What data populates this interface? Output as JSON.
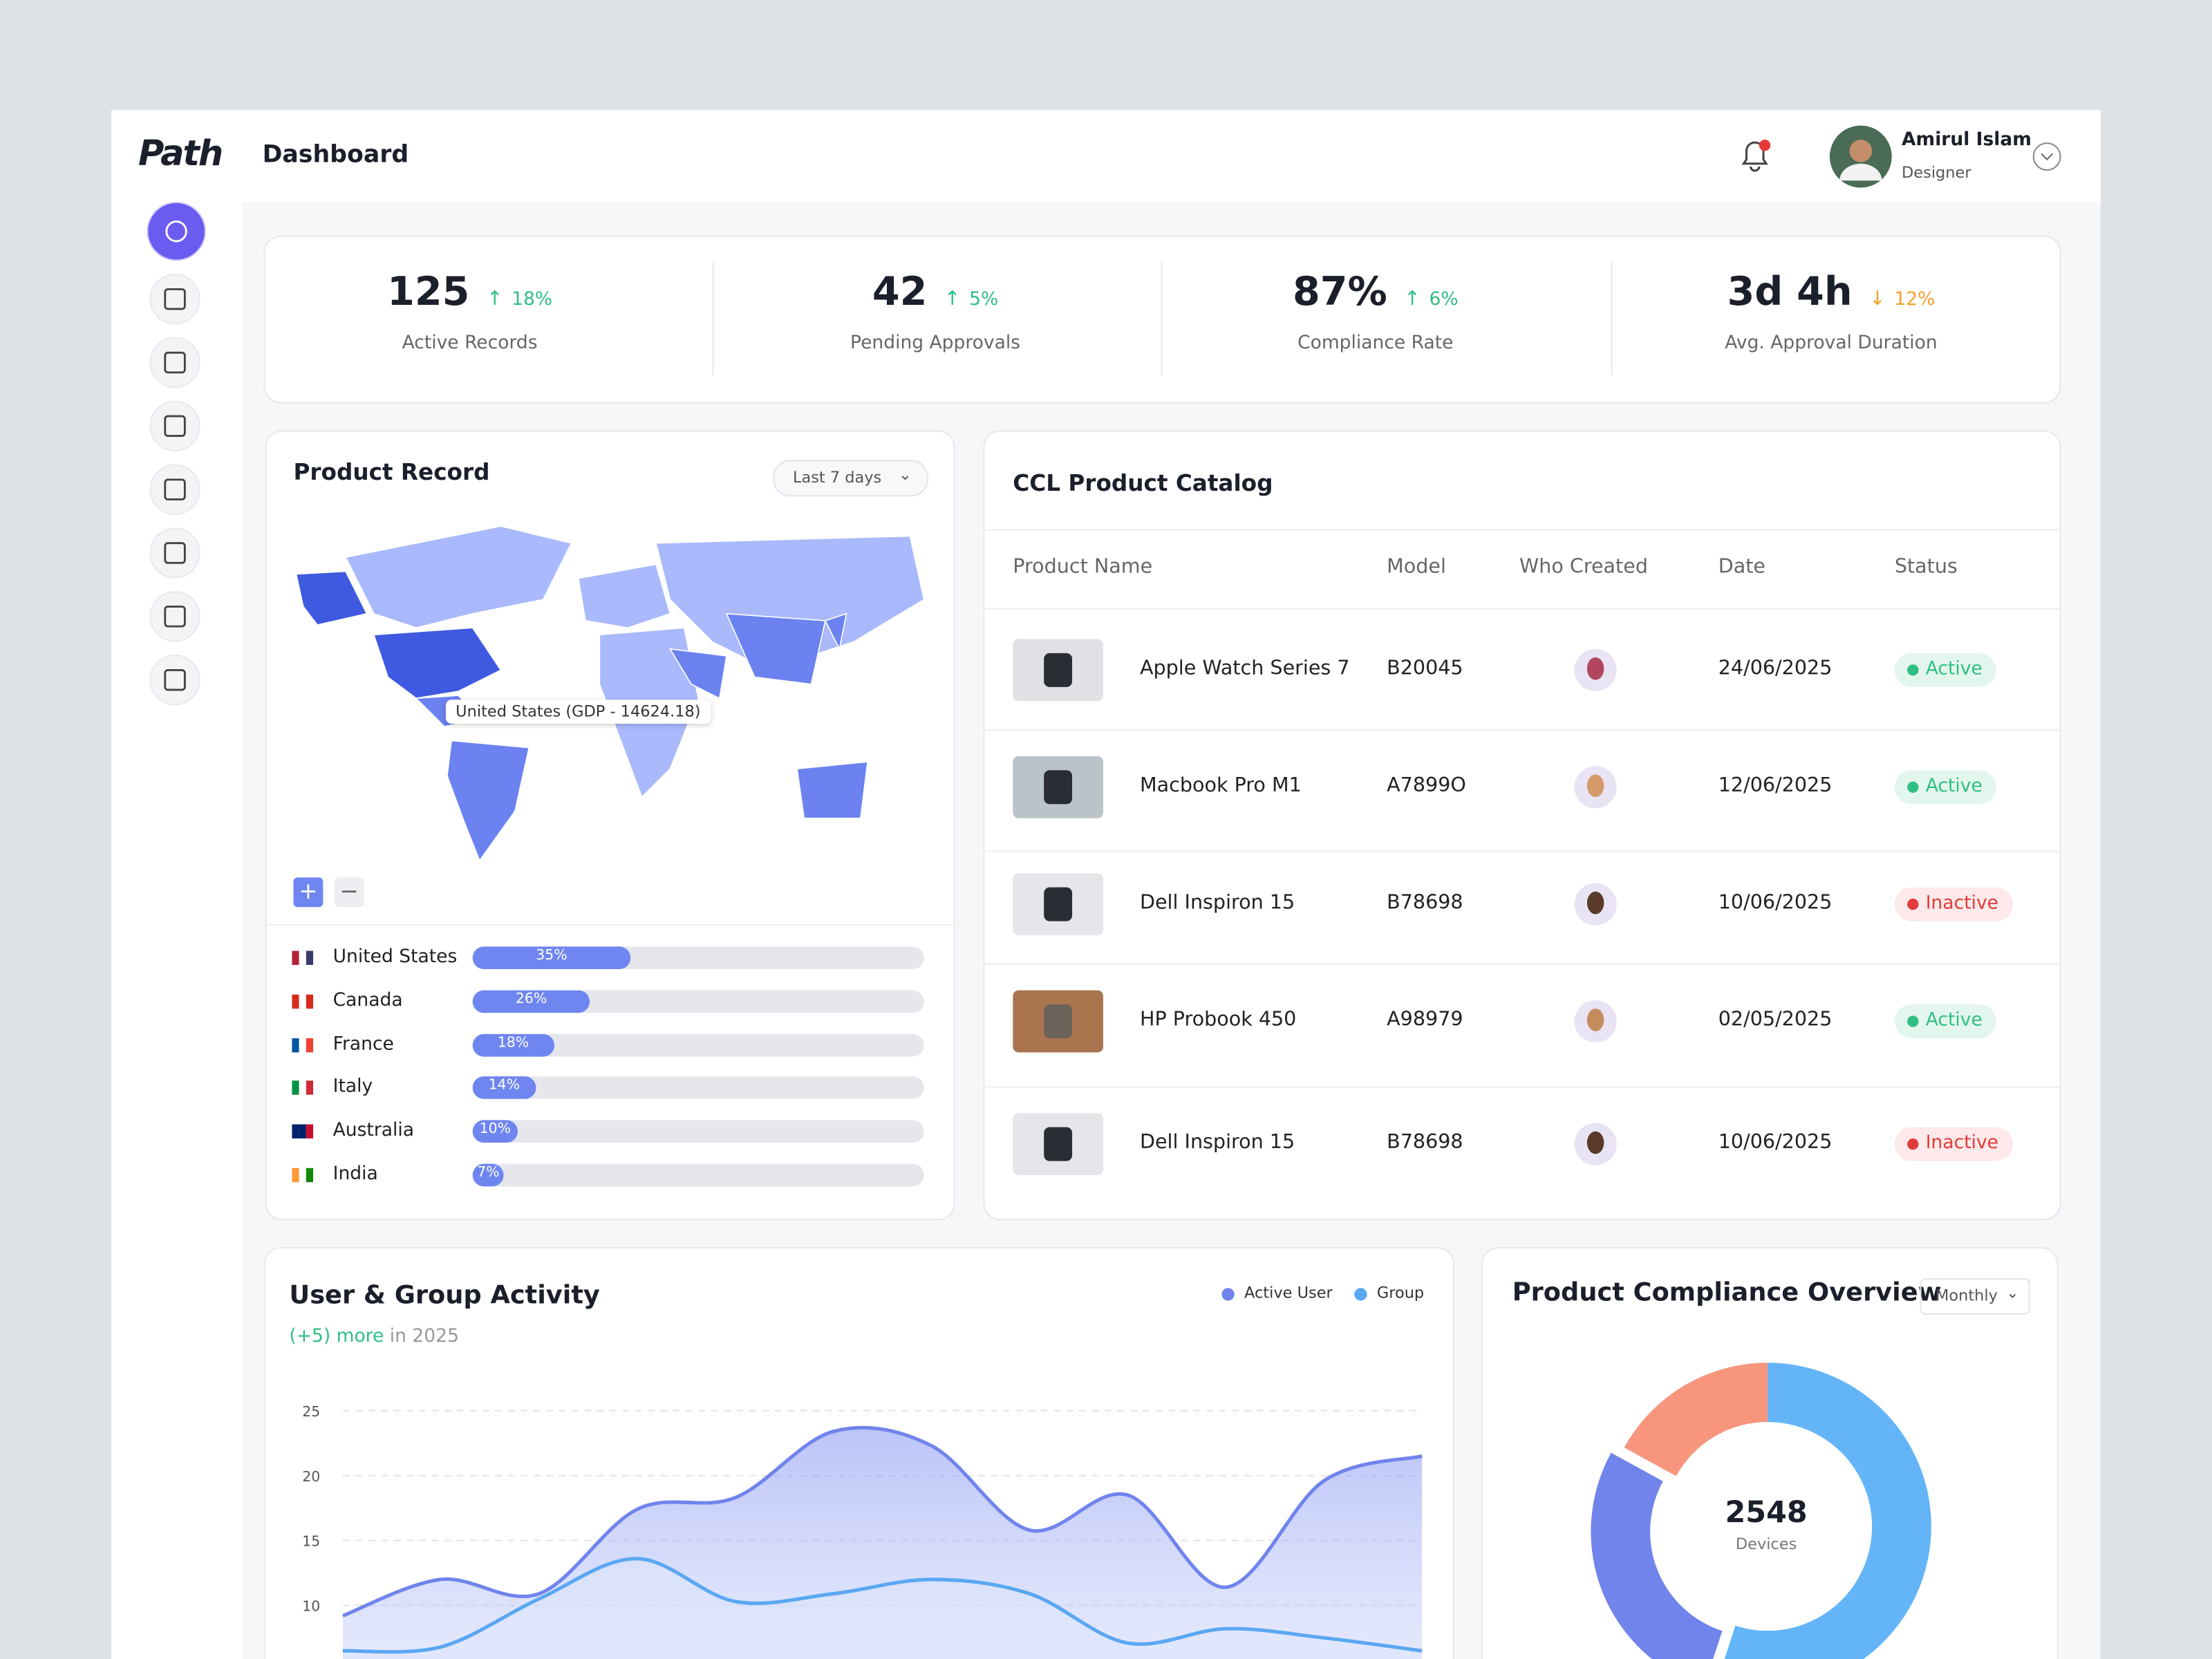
{
  "brand": "Path",
  "header": {
    "title": "Dashboard",
    "user_name": "Amirul Islam",
    "user_role": "Designer"
  },
  "stats": [
    {
      "value": "125",
      "change": "18%",
      "trend": "up",
      "label": "Active Records"
    },
    {
      "value": "42",
      "change": "5%",
      "trend": "up",
      "label": "Pending Approvals"
    },
    {
      "value": "87%",
      "change": "6%",
      "trend": "up",
      "label": "Compliance Rate"
    },
    {
      "value": "3d 4h",
      "change": "12%",
      "trend": "down",
      "label": "Avg. Approval Duration"
    }
  ],
  "product_record": {
    "title": "Product Record",
    "filter": "Last 7 days",
    "tooltip": "United States (GDP - 14624.18)",
    "chart_data": {
      "type": "bar",
      "categories": [
        "United States",
        "Canada",
        "France",
        "Italy",
        "Australia",
        "India"
      ],
      "values": [
        35,
        26,
        18,
        14,
        10,
        7
      ],
      "value_labels": [
        "35%",
        "26%",
        "18%",
        "14%",
        "10%",
        "7%"
      ],
      "color": "#6f86f0",
      "xlim": [
        0,
        100
      ]
    }
  },
  "catalog": {
    "title": "CCL Product Catalog",
    "columns": [
      "Product Name",
      "Model",
      "Who Created",
      "Date",
      "Status"
    ],
    "rows": [
      [
        "Apple Watch Series 7",
        "B20045",
        "24/06/2025",
        "Active"
      ],
      [
        "Macbook Pro M1",
        "A7899O",
        "12/06/2025",
        "Active"
      ],
      [
        "Dell Inspiron 15",
        "B78698",
        "10/06/2025",
        "Inactive"
      ],
      [
        "HP Probook 450",
        "A98979",
        "02/05/2025",
        "Active"
      ],
      [
        "Dell Inspiron 15",
        "B78698",
        "10/06/2025",
        "Inactive"
      ]
    ]
  },
  "activity": {
    "title": "User & Group Activity",
    "subtitle_highlight": "(+5) more",
    "subtitle_rest": "in 2025",
    "chart_data": {
      "type": "area",
      "categories": [
        null,
        null,
        null,
        null,
        null,
        null,
        null,
        null,
        null,
        null,
        null,
        null
      ],
      "series": [
        {
          "name": "Active User",
          "color": "#7184ec",
          "values": [
            9.2,
            12,
            10.9,
            17.4,
            18.3,
            23.4,
            22.3,
            15.8,
            18.5,
            11.4,
            19.6,
            21.5
          ]
        },
        {
          "name": "Group",
          "color": "#5aa7f2",
          "values": [
            6.5,
            6.8,
            10.5,
            13.6,
            10.3,
            10.9,
            12,
            10.9,
            7.1,
            8.2,
            7.5,
            6.5
          ]
        }
      ],
      "ylim": [
        0,
        25
      ],
      "yticks": [
        10,
        15,
        20,
        25
      ],
      "grid": true
    }
  },
  "compliance": {
    "title": "Product Compliance Overview",
    "filter": "Monthly",
    "total": "2548",
    "total_label": "Devices",
    "chart_data": {
      "type": "donut",
      "values": [
        55,
        28,
        17
      ],
      "colors": [
        "#63b5f8",
        "#7184ec",
        "#f7967c"
      ]
    }
  }
}
